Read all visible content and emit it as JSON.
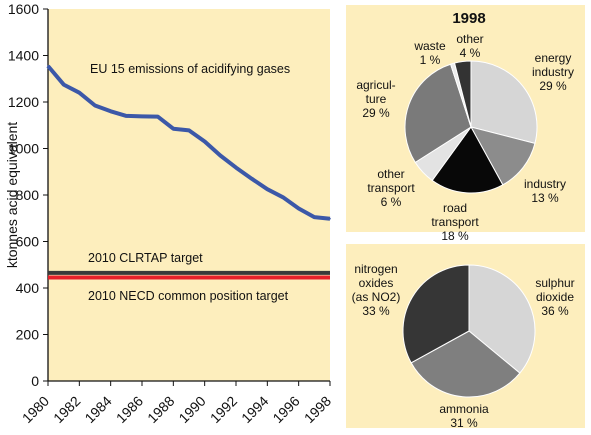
{
  "chart_data": [
    {
      "type": "line",
      "ylabel": "ktonnes acid equivalent",
      "ylim": [
        0,
        1600
      ],
      "yticks": [
        "0",
        "200",
        "400",
        "600",
        "800",
        "1000",
        "1200",
        "1400",
        "1600"
      ],
      "xticks": [
        "1980",
        "1982",
        "1984",
        "1986",
        "1988",
        "1990",
        "1992",
        "1994",
        "1996",
        "1998"
      ],
      "grid": false,
      "x": [
        1980,
        1981,
        1982,
        1983,
        1984,
        1985,
        1986,
        1987,
        1988,
        1989,
        1990,
        1991,
        1992,
        1993,
        1994,
        1995,
        1996,
        1997,
        1998
      ],
      "series": [
        {
          "name": "EU 15 emissions of acidifying gases",
          "color": "#3c58a8",
          "values": [
            1355,
            1275,
            1240,
            1185,
            1160,
            1140,
            1138,
            1137,
            1085,
            1078,
            1030,
            970,
            918,
            870,
            825,
            790,
            742,
            705,
            698
          ]
        }
      ],
      "targets": [
        {
          "label": "2010 CLRTAP target",
          "value": 465,
          "color": "#3a3a3a"
        },
        {
          "label": "2010 NECD common position target",
          "value": 445,
          "color": "#e8202a"
        }
      ]
    },
    {
      "type": "pie",
      "title": "1998",
      "slices": [
        {
          "line1": "energy",
          "line2": "industry",
          "pct": "29 %",
          "value": 29,
          "color": "#d6d6d6"
        },
        {
          "line1": "industry",
          "line2": "",
          "pct": "13 %",
          "value": 13,
          "color": "#8c8c8c"
        },
        {
          "line1": "road",
          "line2": "transport",
          "pct": "18 %",
          "value": 18,
          "color": "#080808"
        },
        {
          "line1": "other",
          "line2": "transport",
          "pct": "6 %",
          "value": 6,
          "color": "#e3e3e3"
        },
        {
          "line1": "agricul-",
          "line2": "ture",
          "pct": "29 %",
          "value": 29,
          "color": "#7a7a7a"
        },
        {
          "line1": "waste",
          "line2": "",
          "pct": "1 %",
          "value": 1,
          "color": "#ececec"
        },
        {
          "line1": "other",
          "line2": "",
          "pct": "4 %",
          "value": 4,
          "color": "#333333"
        }
      ]
    },
    {
      "type": "pie",
      "slices": [
        {
          "line1": "sulphur",
          "line2": "dioxide",
          "line3": "",
          "pct": "36 %",
          "value": 36,
          "color": "#d6d6d6"
        },
        {
          "line1": "ammonia",
          "line2": "",
          "line3": "",
          "pct": "31 %",
          "value": 31,
          "color": "#7f7f7f"
        },
        {
          "line1": "nitrogen",
          "line2": "oxides",
          "line3": "(as NO2)",
          "pct": "33 %",
          "value": 33,
          "color": "#363636"
        }
      ]
    }
  ]
}
